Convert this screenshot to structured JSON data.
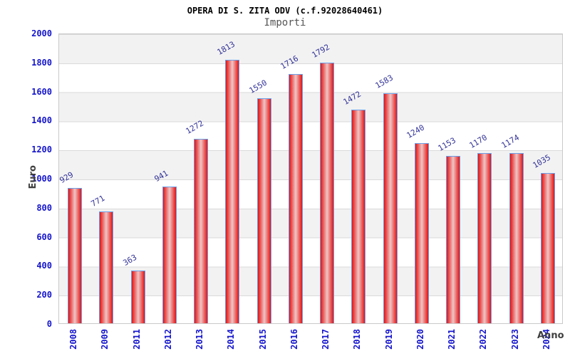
{
  "chart_data": {
    "type": "bar",
    "title": "OPERA DI S. ZITA ODV (c.f.92028640461)",
    "subtitle": "Importi",
    "xlabel": "Anno",
    "ylabel": "Euro",
    "categories": [
      "2008",
      "2009",
      "2011",
      "2012",
      "2013",
      "2014",
      "2015",
      "2016",
      "2017",
      "2018",
      "2019",
      "2020",
      "2021",
      "2022",
      "2023",
      "2024"
    ],
    "values": [
      929,
      771,
      363,
      941,
      1272,
      1813,
      1550,
      1716,
      1792,
      1472,
      1583,
      1240,
      1153,
      1170,
      1174,
      1035
    ],
    "ylim": [
      0,
      2000
    ],
    "y_ticks": [
      0,
      200,
      400,
      600,
      800,
      1000,
      1200,
      1400,
      1600,
      1800,
      2000
    ],
    "grid": "horizontal gridlines every 200 units over alternating gray/white 200-unit bands",
    "legend": "none",
    "colors": {
      "bar_edge_red": "#e01313",
      "bar_mid_red": "#ea4747",
      "bar_center_light": "#eec6c6",
      "bar_border_blue": "#6aa0ea",
      "value_label_navy": "#333399",
      "tick_label_blue": "#1515cd",
      "axis_title_gray": "#3f3f3f",
      "subtitle_gray": "#555555",
      "band_gray": "#f2f2f2",
      "gridline_gray": "#dadada"
    }
  }
}
